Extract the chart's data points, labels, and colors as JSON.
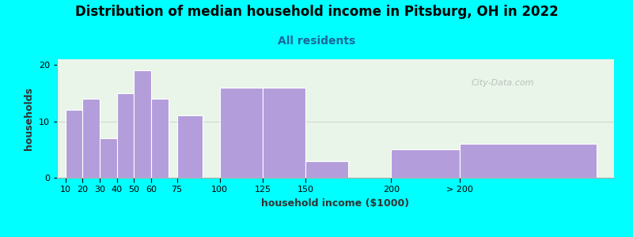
{
  "title": "Distribution of median household income in Pitsburg, OH in 2022",
  "subtitle": "All residents",
  "xlabel": "household income ($1000)",
  "ylabel": "households",
  "bg_color": "#00FFFF",
  "plot_bg_color": "#e8f5e8",
  "bar_color": "#b39ddb",
  "bar_edge_color": "#ffffff",
  "values": [
    12,
    14,
    7,
    15,
    19,
    14,
    11,
    16,
    16,
    3,
    5,
    6
  ],
  "bar_lefts": [
    10,
    20,
    30,
    40,
    50,
    60,
    75,
    100,
    125,
    150,
    200,
    240
  ],
  "bar_widths": [
    10,
    10,
    10,
    10,
    10,
    10,
    15,
    25,
    25,
    25,
    40,
    80
  ],
  "ylim": [
    0,
    21
  ],
  "yticks": [
    0,
    10,
    20
  ],
  "xtick_labels": [
    "10",
    "20",
    "30",
    "40",
    "50",
    "60",
    "75",
    "100",
    "125",
    "150",
    "200",
    "> 200"
  ],
  "xtick_positions": [
    10,
    20,
    30,
    40,
    50,
    60,
    75,
    100,
    125,
    150,
    200,
    240
  ],
  "xlim_left": 5,
  "xlim_right": 330,
  "title_fontsize": 12,
  "subtitle_fontsize": 10,
  "axis_label_fontsize": 9,
  "tick_fontsize": 8,
  "watermark": "City-Data.com"
}
